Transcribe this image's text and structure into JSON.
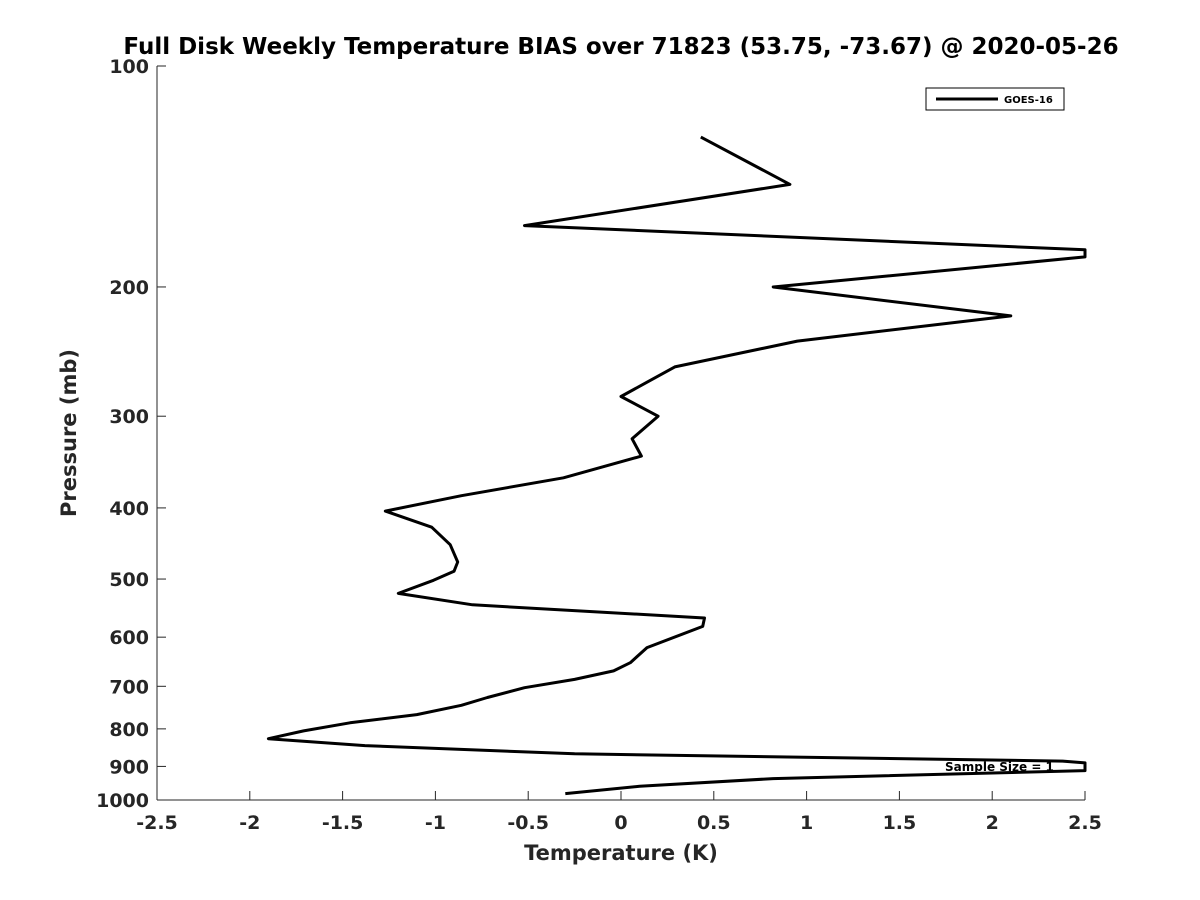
{
  "chart_data": {
    "type": "line",
    "title": "Full Disk Weekly Temperature BIAS over 71823 (53.75, -73.67) @ 2020-05-26",
    "xlabel": "Temperature (K)",
    "ylabel": "Pressure (mb)",
    "xlim": [
      -2.5,
      2.5
    ],
    "ylim": [
      100,
      1000
    ],
    "y_scale": "log",
    "y_reversed": true,
    "x_ticks": [
      -2.5,
      -2,
      -1.5,
      -1,
      -0.5,
      0,
      0.5,
      1,
      1.5,
      2,
      2.5
    ],
    "x_tick_labels": [
      "-2.5",
      "-2",
      "-1.5",
      "-1",
      "-0.5",
      "0",
      "0.5",
      "1",
      "1.5",
      "2",
      "2.5"
    ],
    "y_ticks": [
      100,
      200,
      300,
      400,
      500,
      600,
      700,
      800,
      900,
      1000
    ],
    "y_tick_labels": [
      "100",
      "200",
      "300",
      "400",
      "500",
      "600",
      "700",
      "800",
      "900",
      "1000"
    ],
    "grid": false,
    "legend_position": "top-right",
    "series": [
      {
        "name": "GOES-16",
        "color": "#000000",
        "x": [
          0.43,
          0.91,
          -0.52,
          2.5,
          2.5,
          0.82,
          2.1,
          0.95,
          0.29,
          0.0,
          0.2,
          0.06,
          0.11,
          -0.31,
          -0.86,
          -1.27,
          -1.02,
          -0.92,
          -0.88,
          -0.9,
          -1.01,
          -1.2,
          -0.8,
          0.45,
          0.44,
          0.14,
          0.05,
          -0.04,
          -0.25,
          -0.52,
          -0.72,
          -0.86,
          -1.1,
          -1.46,
          -1.71,
          -1.9,
          -1.38,
          -0.25,
          2.38,
          2.5,
          2.5,
          0.82,
          0.1,
          -0.3
        ],
        "y": [
          125,
          145,
          165,
          178,
          182,
          200,
          219,
          237,
          257,
          282,
          300,
          322,
          340,
          364,
          385,
          404,
          425,
          449,
          474,
          488,
          502,
          523,
          542,
          565,
          580,
          620,
          650,
          667,
          685,
          703,
          725,
          743,
          765,
          785,
          805,
          825,
          843,
          865,
          885,
          890,
          912,
          935,
          958,
          980
        ]
      }
    ],
    "annotations": [
      "Sample Size = 1"
    ]
  }
}
